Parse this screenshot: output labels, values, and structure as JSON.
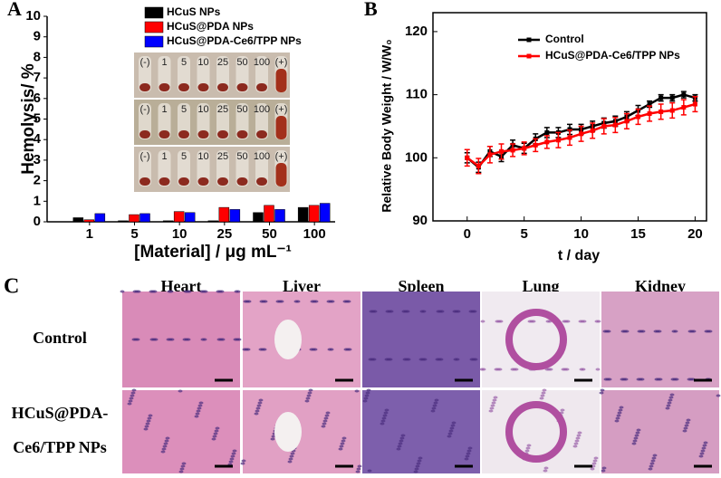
{
  "chart_data": [
    {
      "type": "bar",
      "panel": "A",
      "ylabel": "Hemolysis/ %",
      "xlabel": "[Material] / μg mL⁻¹",
      "categories": [
        "1",
        "5",
        "10",
        "25",
        "50",
        "100"
      ],
      "series": [
        {
          "name": "HCuS NPs",
          "color": "#000000",
          "values": [
            0.2,
            0.05,
            0.05,
            0.05,
            0.45,
            0.7
          ]
        },
        {
          "name": "HCuS@PDA NPs",
          "color": "#ff0000",
          "values": [
            0.1,
            0.35,
            0.5,
            0.7,
            0.8,
            0.8
          ]
        },
        {
          "name": "HCuS@PDA-Ce6/TPP NPs",
          "color": "#0000ff",
          "values": [
            0.4,
            0.4,
            0.45,
            0.6,
            0.6,
            0.9
          ]
        }
      ],
      "ylim": [
        0,
        10
      ],
      "yticks": [
        0,
        1,
        2,
        3,
        4,
        5,
        6,
        7,
        8,
        9,
        10
      ],
      "inset_labels": [
        "(-)",
        "1",
        "5",
        "10",
        "25",
        "50",
        "100",
        "(+)"
      ]
    },
    {
      "type": "line",
      "panel": "B",
      "ylabel": "Relative Body Weight / W/W₀",
      "xlabel": "t / day",
      "x": [
        0,
        1,
        2,
        3,
        4,
        5,
        6,
        7,
        8,
        9,
        10,
        11,
        12,
        13,
        14,
        15,
        16,
        17,
        18,
        19,
        20
      ],
      "series": [
        {
          "name": "Control",
          "color": "#000000",
          "values": [
            100,
            98.5,
            101,
            100.2,
            102,
            101.5,
            103,
            104,
            104,
            104.5,
            104.5,
            105,
            105.5,
            105.8,
            106.5,
            107.5,
            108.5,
            109.5,
            109.5,
            110,
            109.5
          ],
          "errors": [
            0.8,
            0.8,
            0.8,
            0.8,
            0.8,
            0.8,
            0.8,
            0.8,
            0.8,
            0.8,
            0.8,
            0.8,
            0.8,
            0.8,
            0.8,
            0.8,
            0.5,
            0.5,
            0.5,
            0.5,
            0.5
          ]
        },
        {
          "name": "HCuS@PDA-Ce6/TPP NPs",
          "color": "#ff0000",
          "values": [
            100,
            98.7,
            100.5,
            101,
            101.2,
            101.5,
            102,
            102.5,
            102.8,
            103.2,
            103.8,
            104.3,
            105,
            105.2,
            105.8,
            106.5,
            107,
            107.3,
            107.5,
            108,
            108.5
          ],
          "errors": [
            1.3,
            1.2,
            1.3,
            1.2,
            1,
            1,
            1,
            1,
            1.2,
            1.2,
            1.2,
            1.2,
            1.2,
            1.2,
            1.2,
            1.2,
            1.2,
            1.2,
            1.2,
            1.2,
            1.2
          ]
        }
      ],
      "xlim": [
        -3,
        21
      ],
      "xticks": [
        0,
        5,
        10,
        15,
        20
      ],
      "ylim": [
        90,
        123
      ],
      "yticks": [
        90,
        100,
        110,
        120
      ],
      "legend": "upper left"
    }
  ],
  "panel_c": {
    "label": "C",
    "columns": [
      "Heart",
      "Liver",
      "Spleen",
      "Lung",
      "Kidney"
    ],
    "rows": [
      [
        "Control"
      ],
      [
        "HCuS@PDA-",
        "Ce6/TPP NPs"
      ]
    ]
  }
}
